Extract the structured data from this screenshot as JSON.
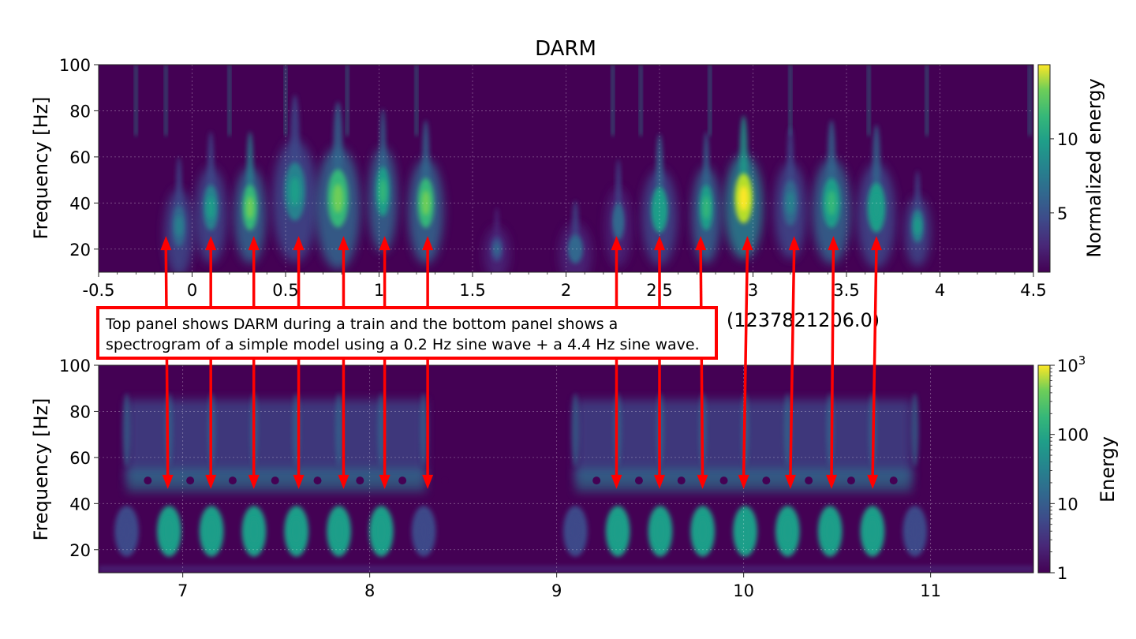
{
  "chart_data": [
    {
      "type": "heatmap",
      "title": "DARM",
      "ylabel": "Frequency [Hz]",
      "xlabel": "(1237821206.0)",
      "xlim": [
        -0.5,
        4.5
      ],
      "ylim": [
        10,
        100
      ],
      "x_ticks": [
        "-0.5",
        "0",
        "0.5",
        "1",
        "1.5",
        "2",
        "2.5",
        "3",
        "3.5",
        "4",
        "4.5"
      ],
      "x_tick_values": [
        -0.5,
        0,
        0.5,
        1,
        1.5,
        2,
        2.5,
        3,
        3.5,
        4,
        4.5
      ],
      "y_ticks": [
        "20",
        "40",
        "60",
        "80",
        "100"
      ],
      "y_tick_values": [
        20,
        40,
        60,
        80,
        100
      ],
      "colorbar": {
        "label": "Normalized energy",
        "ticks": [
          "5",
          "10"
        ],
        "tick_values": [
          5,
          10
        ],
        "range": [
          1,
          15
        ],
        "scale": "linear"
      },
      "colormap": "viridis",
      "blobs": [
        {
          "t": -0.07,
          "f": 30,
          "e": 0.45,
          "w": 0.045,
          "h": 10
        },
        {
          "t": 0.1,
          "f": 38,
          "e": 0.55,
          "w": 0.05,
          "h": 11
        },
        {
          "t": 0.31,
          "f": 38,
          "e": 0.8,
          "w": 0.05,
          "h": 11
        },
        {
          "t": 0.55,
          "f": 45,
          "e": 0.5,
          "w": 0.07,
          "h": 14
        },
        {
          "t": 0.78,
          "f": 42,
          "e": 0.75,
          "w": 0.07,
          "h": 14
        },
        {
          "t": 1.02,
          "f": 45,
          "e": 0.65,
          "w": 0.045,
          "h": 12
        },
        {
          "t": 1.25,
          "f": 40,
          "e": 0.75,
          "w": 0.055,
          "h": 12
        },
        {
          "t": 1.63,
          "f": 20,
          "e": 0.3,
          "w": 0.04,
          "h": 6
        },
        {
          "t": 2.05,
          "f": 20,
          "e": 0.35,
          "w": 0.05,
          "h": 7
        },
        {
          "t": 2.28,
          "f": 32,
          "e": 0.35,
          "w": 0.04,
          "h": 9
        },
        {
          "t": 2.5,
          "f": 37,
          "e": 0.6,
          "w": 0.055,
          "h": 11
        },
        {
          "t": 2.75,
          "f": 38,
          "e": 0.65,
          "w": 0.045,
          "h": 11
        },
        {
          "t": 2.95,
          "f": 42,
          "e": 1.0,
          "w": 0.06,
          "h": 12
        },
        {
          "t": 3.2,
          "f": 40,
          "e": 0.45,
          "w": 0.05,
          "h": 11
        },
        {
          "t": 3.42,
          "f": 40,
          "e": 0.7,
          "w": 0.06,
          "h": 12
        },
        {
          "t": 3.66,
          "f": 38,
          "e": 0.6,
          "w": 0.06,
          "h": 12
        },
        {
          "t": 3.88,
          "f": 30,
          "e": 0.5,
          "w": 0.04,
          "h": 8
        }
      ],
      "streaks": [
        -0.3,
        -0.14,
        0.2,
        0.5,
        0.83,
        1.2,
        2.25,
        2.4,
        2.77,
        3.2,
        3.62,
        3.93,
        4.48
      ]
    },
    {
      "type": "heatmap",
      "title": "",
      "ylabel": "Frequency [Hz]",
      "xlabel": "",
      "xlim": [
        6.55,
        11.55
      ],
      "ylim": [
        10,
        100
      ],
      "x_ticks": [
        "7",
        "8",
        "9",
        "10",
        "11"
      ],
      "x_tick_values": [
        7,
        8,
        9,
        10,
        11
      ],
      "y_ticks": [
        "20",
        "40",
        "60",
        "80",
        "100"
      ],
      "y_tick_values": [
        20,
        40,
        60,
        80,
        100
      ],
      "colorbar": {
        "label": "Energy",
        "ticks": [
          "1",
          "10",
          "100",
          "10^3"
        ],
        "tick_values": [
          1,
          10,
          100,
          1000
        ],
        "range": [
          1,
          1000
        ],
        "scale": "log"
      },
      "colormap": "viridis",
      "train_1": {
        "t_start": 6.7,
        "t_end": 8.3,
        "period": 0.227
      },
      "train_2": {
        "t_start": 9.1,
        "t_end": 10.9,
        "period": 0.227
      }
    }
  ],
  "annotation": {
    "line1": "Top panel shows DARM during a train and the bottom panel shows a",
    "line2": "spectrogram of a simple model using a 0.2 Hz sine wave + a 4.4 Hz sine wave."
  },
  "arrows": {
    "top_times": [
      -0.14,
      0.1,
      0.33,
      0.57,
      0.81,
      1.03,
      1.26,
      2.27,
      2.5,
      2.72,
      2.97,
      3.22,
      3.43,
      3.66
    ],
    "bottom_times": [
      6.92,
      7.15,
      7.38,
      7.62,
      7.86,
      8.08,
      8.31,
      9.32,
      9.55,
      9.78,
      10.0,
      10.25,
      10.47,
      10.69
    ],
    "top_freq": 25,
    "bottom_freq": 47,
    "color": "#ff0000"
  }
}
